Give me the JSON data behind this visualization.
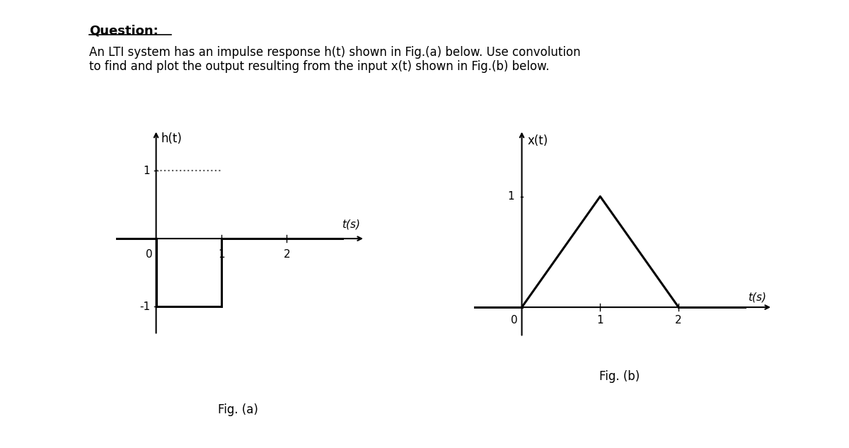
{
  "title_text": "Question:",
  "line1": "An LTI system has an impulse response h(t) shown in Fig.(a) below. Use convolution",
  "line2": "to find and plot the output resulting from the input x(t) shown in Fig.(b) below.",
  "fig_a_label": "Fig. (a)",
  "fig_b_label": "Fig. (b)",
  "fig_a_ylabel": "h(t)",
  "fig_b_ylabel": "x(t)",
  "xlabel": "t(s)",
  "fig_a_xlim": [
    -0.7,
    3.2
  ],
  "fig_a_ylim": [
    -1.5,
    1.6
  ],
  "fig_b_xlim": [
    -0.7,
    3.2
  ],
  "fig_b_ylim": [
    -0.3,
    1.6
  ],
  "line_color": "#000000",
  "dotted_color": "#555555",
  "yticks_a": [
    -1,
    1
  ],
  "yticks_b": [
    1
  ],
  "xticks_a": [
    1,
    2
  ],
  "xticks_b": [
    1,
    2
  ]
}
